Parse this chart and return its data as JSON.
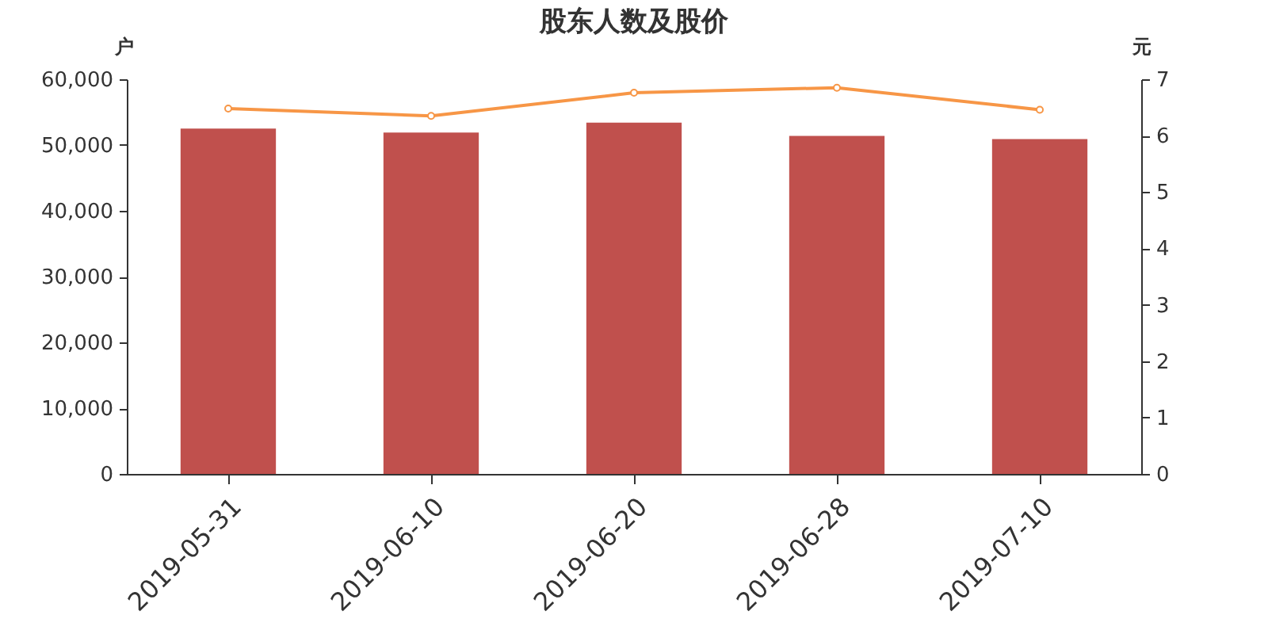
{
  "chart_data": {
    "type": "bar",
    "title": "股东人数及股价",
    "ylabel": "户",
    "y2label": "元",
    "categories": [
      "2019-05-31",
      "2019-06-10",
      "2019-06-20",
      "2019-06-28",
      "2019-07-10"
    ],
    "series": [
      {
        "color": "#c0504d",
        "values": [
          52500,
          51900,
          53400,
          51400,
          50900
        ]
      },
      {
        "type": "line",
        "axis": "y2",
        "color": "#f79646",
        "marker": "circle",
        "values": [
          6.48,
          6.35,
          6.76,
          6.85,
          6.46
        ]
      }
    ],
    "ylim": [
      0,
      60000
    ],
    "yticks": [
      0,
      {
        "value": 10000,
        "label": "10,000"
      },
      {
        "value": 20000,
        "label": "20,000"
      },
      {
        "value": 30000,
        "label": "30,000"
      },
      {
        "value": 40000,
        "label": "40,000"
      },
      {
        "value": 50000,
        "label": "50,000"
      },
      {
        "value": 60000,
        "label": "60,000"
      }
    ],
    "y2lim": [
      0,
      7
    ],
    "y2ticks": [
      0,
      1,
      2,
      3,
      4,
      5,
      6,
      7
    ],
    "grid": false
  }
}
